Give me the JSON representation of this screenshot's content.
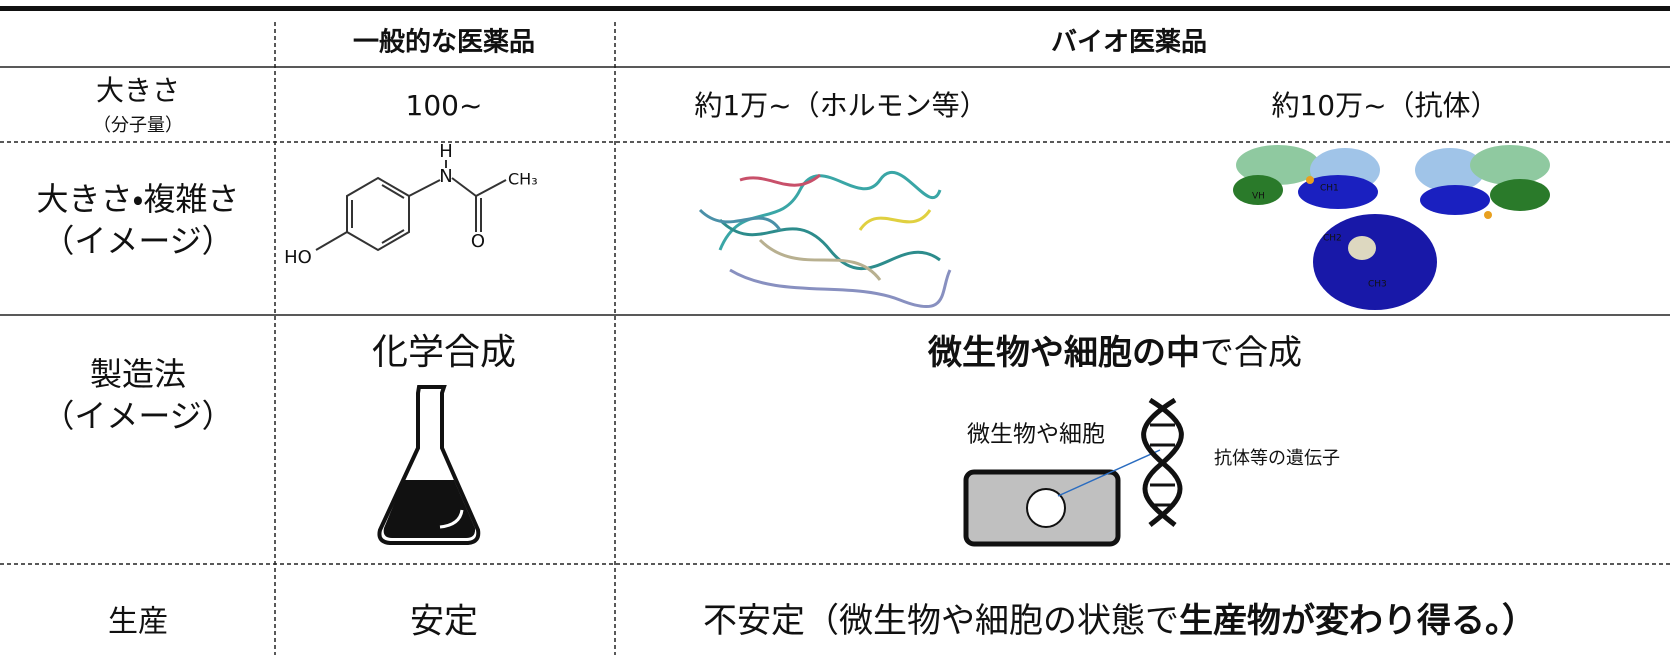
{
  "header": {
    "general": "一般的な医薬品",
    "bio": "バイオ医薬品"
  },
  "rows": [
    {
      "label": "大きさ",
      "sublabel": "（分子量）",
      "general": "100~",
      "bio": [
        "約1万~（ホルモン等）",
        "約10万~（抗体）"
      ]
    },
    {
      "label": "大きさ・複雑さ",
      "sublabel": "（イメージ）",
      "general_labels": [
        "H",
        "N",
        "CH₃",
        "O",
        "HO"
      ],
      "antibody_labels": [
        "VH",
        "CH1",
        "CH2",
        "CH3"
      ]
    },
    {
      "label": "製造法",
      "sublabel": "（イメージ）",
      "general": "化学合成",
      "bio_bold": "微生物や細胞の中",
      "bio_normal": "で合成",
      "cell_label": "微生物や細胞",
      "gene_label": "抗体等の遺伝子"
    },
    {
      "label": "生産",
      "general": "安定",
      "bio_normal": "不安定（微生物や細胞の状態で",
      "bio_bold": "生産物が変わり得る。）"
    }
  ]
}
